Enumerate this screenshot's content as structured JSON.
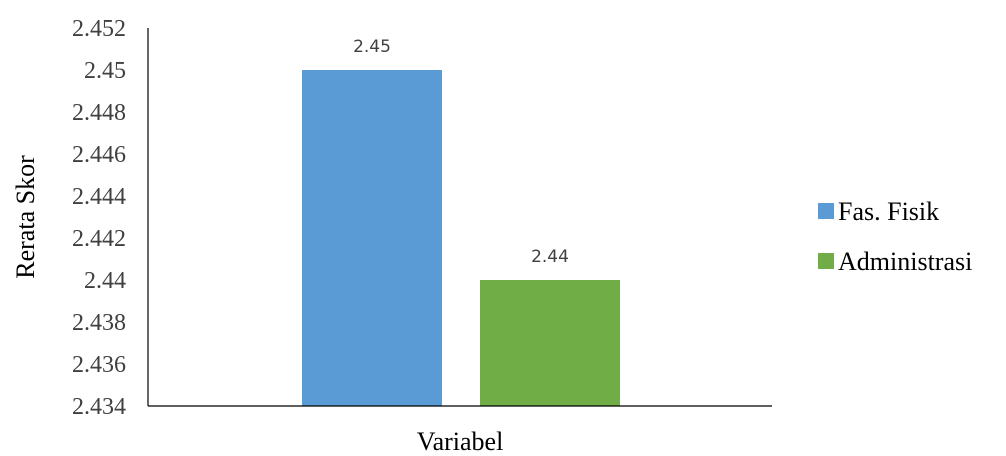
{
  "chart_data": {
    "type": "bar",
    "categories": [
      ""
    ],
    "series": [
      {
        "name": "Fas. Fisik",
        "values": [
          2.45
        ],
        "color": "#5b9bd5",
        "label": "2.45"
      },
      {
        "name": "Administrasi",
        "values": [
          2.44
        ],
        "color": "#70ad47",
        "label": "2.44"
      }
    ],
    "xlabel": "Variabel",
    "ylabel": "Rerata Skor",
    "ylim": [
      2.434,
      2.452
    ],
    "yticks": [
      "2.452",
      "2.45",
      "2.448",
      "2.446",
      "2.444",
      "2.442",
      "2.44",
      "2.438",
      "2.436",
      "2.434"
    ],
    "grid": false,
    "legend": "right"
  }
}
